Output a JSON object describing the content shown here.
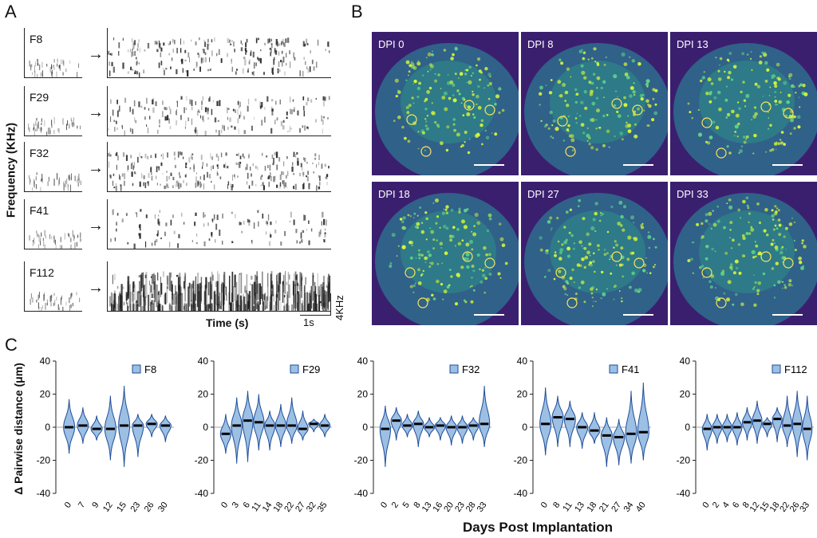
{
  "panels": {
    "a": "A",
    "b": "B",
    "c": "C"
  },
  "panel_a": {
    "y_label": "Frequency (KHz)",
    "x_label": "Time (s)",
    "scale_time": "1s",
    "scale_freq": "4KHz",
    "rows": [
      {
        "bird": "F8"
      },
      {
        "bird": "F29"
      },
      {
        "bird": "F32"
      },
      {
        "bird": "F41"
      },
      {
        "bird": "F112"
      }
    ]
  },
  "panel_b": {
    "tiles": [
      {
        "label": "DPI 0"
      },
      {
        "label": "DPI 8"
      },
      {
        "label": "DPI 13"
      },
      {
        "label": "DPI 18"
      },
      {
        "label": "DPI 27"
      },
      {
        "label": "DPI 33"
      }
    ]
  },
  "colors": {
    "violin_fill": "#9cbfe4",
    "violin_stroke": "#1f4e9a",
    "median": "#000000",
    "fluor_bg": "#3a1f6e",
    "cell": "#d6f53a"
  },
  "chart_data": [
    {
      "type": "violin",
      "title": "F8",
      "ylabel": "Δ Pairwise distance (μm)",
      "ylim": [
        -40,
        40
      ],
      "yticks": [
        -40,
        -20,
        0,
        20,
        40
      ],
      "categories": [
        "0",
        "7",
        "9",
        "12",
        "15",
        "23",
        "26",
        "30"
      ],
      "medians": [
        0,
        1,
        -1,
        -1,
        1,
        1,
        2,
        1
      ],
      "mins": [
        -16,
        -10,
        -8,
        -20,
        -24,
        -18,
        -6,
        -9
      ],
      "maxs": [
        17,
        12,
        7,
        19,
        25,
        8,
        8,
        7
      ]
    },
    {
      "type": "violin",
      "title": "F29",
      "ylabel": "",
      "ylim": [
        -40,
        40
      ],
      "yticks": [
        -40,
        -20,
        0,
        20,
        40
      ],
      "categories": [
        "0",
        "3",
        "6",
        "11",
        "14",
        "18",
        "22",
        "27",
        "32",
        "35"
      ],
      "medians": [
        -4,
        1,
        4,
        3,
        1,
        1,
        1,
        -1,
        2,
        1
      ],
      "mins": [
        -16,
        -22,
        -21,
        -14,
        -14,
        -12,
        -10,
        -8,
        -3,
        -6
      ],
      "maxs": [
        8,
        18,
        22,
        20,
        10,
        14,
        18,
        10,
        5,
        8
      ]
    },
    {
      "type": "violin",
      "title": "F32",
      "ylabel": "",
      "ylim": [
        -40,
        40
      ],
      "yticks": [
        -40,
        -20,
        0,
        20,
        40
      ],
      "categories": [
        "0",
        "2",
        "5",
        "8",
        "13",
        "16",
        "20",
        "23",
        "28",
        "33"
      ],
      "medians": [
        -1,
        4,
        1,
        2,
        0,
        1,
        0,
        0,
        1,
        2
      ],
      "mins": [
        -24,
        -8,
        -6,
        -12,
        -6,
        -8,
        -11,
        -10,
        -8,
        -12
      ],
      "maxs": [
        13,
        12,
        8,
        10,
        6,
        6,
        7,
        7,
        6,
        25
      ]
    },
    {
      "type": "violin",
      "title": "F41",
      "ylabel": "",
      "ylim": [
        -40,
        40
      ],
      "yticks": [
        -40,
        -20,
        0,
        20,
        40
      ],
      "categories": [
        "0",
        "8",
        "11",
        "13",
        "18",
        "21",
        "27",
        "34",
        "40"
      ],
      "medians": [
        2,
        6,
        5,
        0,
        -2,
        -5,
        -6,
        -4,
        -3
      ],
      "mins": [
        -17,
        -12,
        -12,
        -13,
        -10,
        -24,
        -23,
        -22,
        -20
      ],
      "maxs": [
        24,
        19,
        16,
        9,
        9,
        6,
        5,
        22,
        27
      ]
    },
    {
      "type": "violin",
      "title": "F112",
      "ylabel": "",
      "ylim": [
        -40,
        40
      ],
      "yticks": [
        -40,
        -20,
        0,
        20,
        40
      ],
      "categories": [
        "0",
        "2",
        "4",
        "6",
        "8",
        "12",
        "15",
        "18",
        "22",
        "26",
        "33"
      ],
      "medians": [
        -1,
        0,
        0,
        0,
        3,
        4,
        2,
        5,
        1,
        2,
        -1
      ],
      "mins": [
        -14,
        -10,
        -9,
        -11,
        -8,
        -10,
        -6,
        -9,
        -12,
        -18,
        -20
      ],
      "maxs": [
        8,
        8,
        8,
        9,
        12,
        16,
        6,
        12,
        19,
        22,
        19
      ]
    }
  ],
  "x_axis_title": "Days Post Implantation"
}
